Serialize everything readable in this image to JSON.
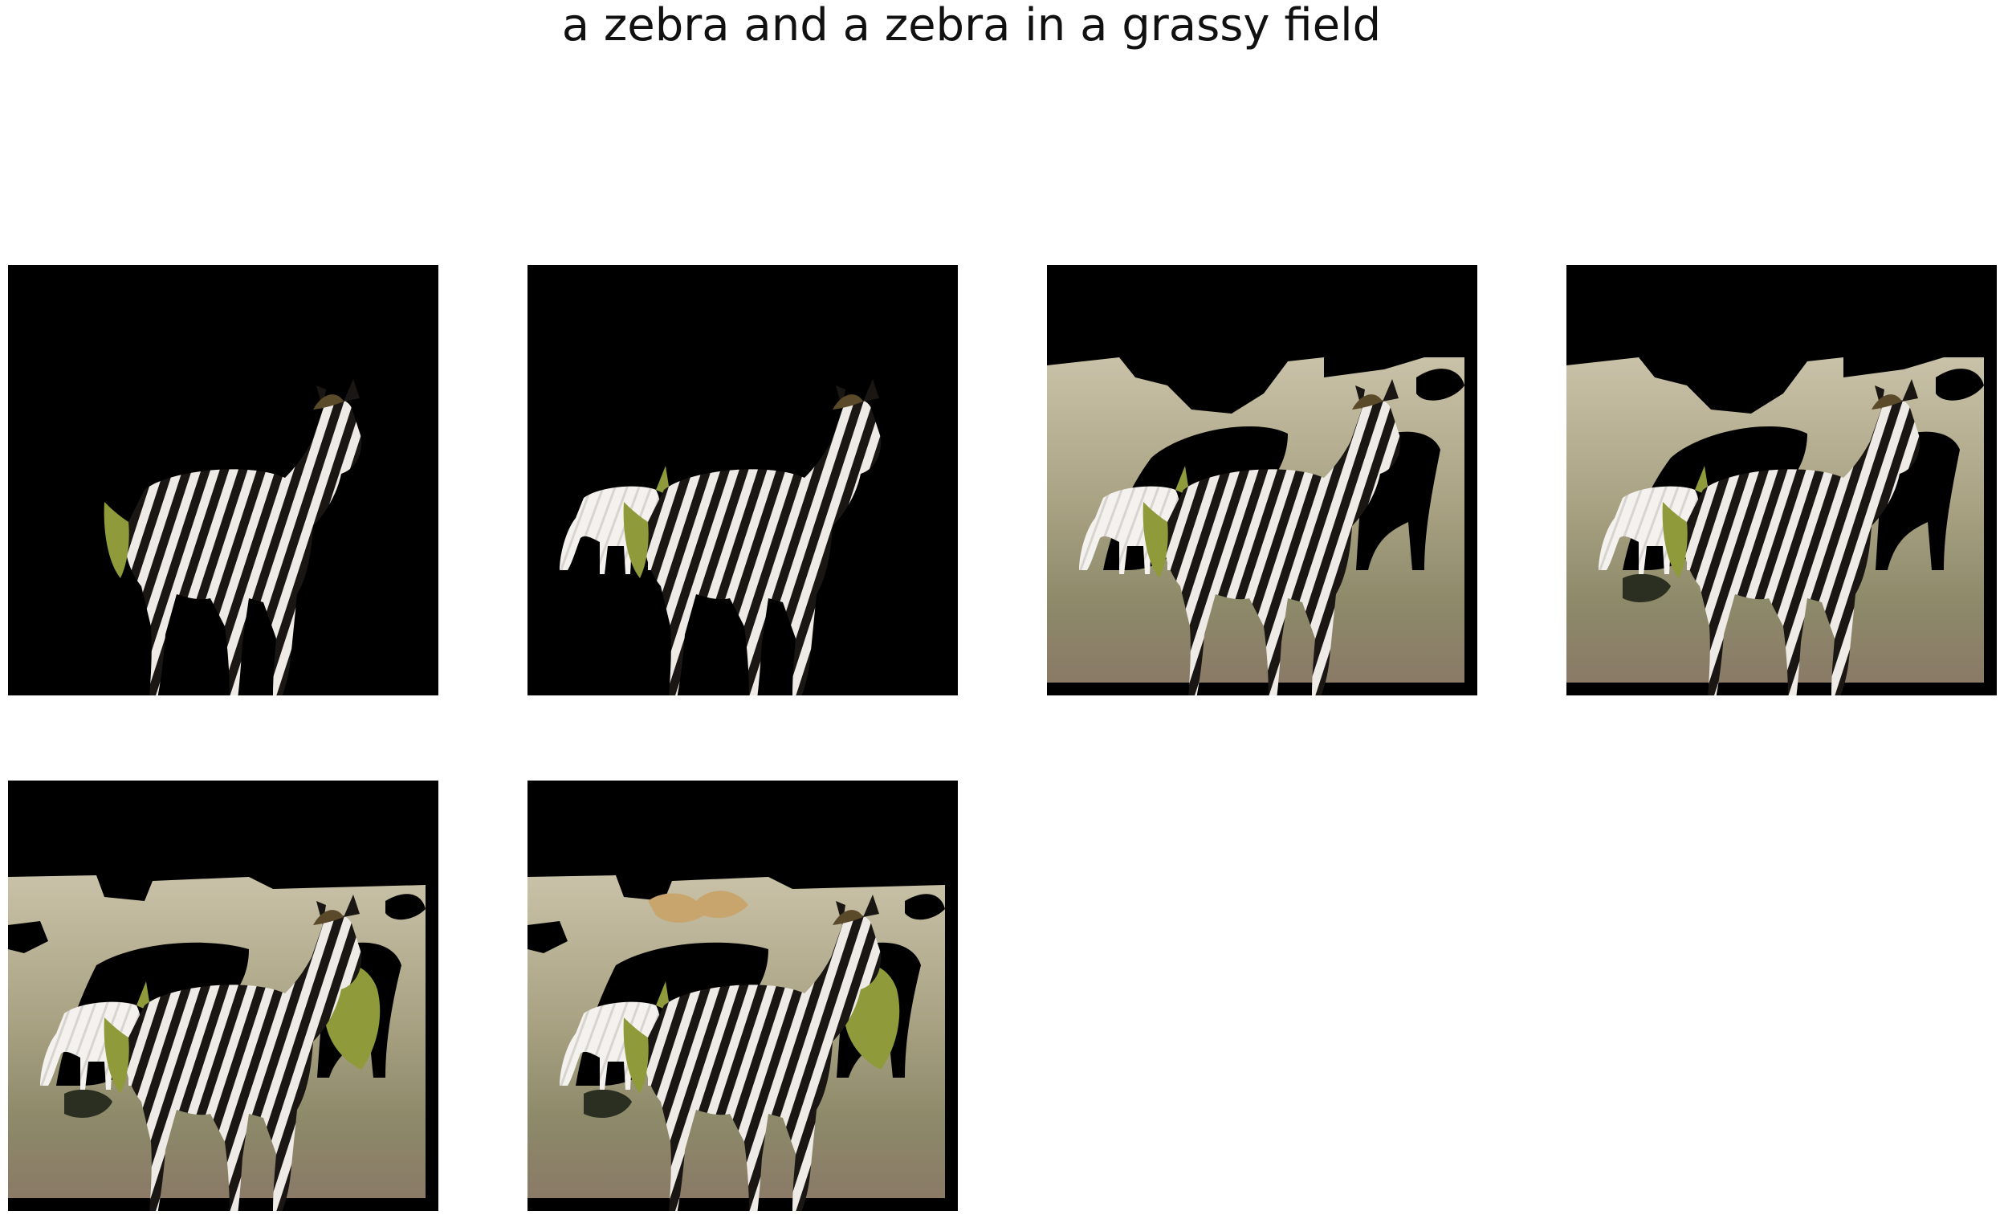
{
  "title": "a zebra and a zebra in a grassy field",
  "panels": [
    {
      "index": 1,
      "layers": [
        "zebra-main",
        "tail-foliage"
      ]
    },
    {
      "index": 2,
      "layers": [
        "zebra-main",
        "zebra-white"
      ]
    },
    {
      "index": 3,
      "layers": [
        "background-field",
        "zebra-main",
        "zebra-white"
      ]
    },
    {
      "index": 4,
      "layers": [
        "background-field",
        "zebra-main",
        "zebra-white",
        "shadow-patch"
      ]
    },
    {
      "index": 5,
      "layers": [
        "background-field",
        "zebra-main",
        "zebra-white",
        "shadow-patch",
        "bush-right"
      ]
    },
    {
      "index": 6,
      "layers": [
        "background-field",
        "zebra-main",
        "zebra-white",
        "shadow-patch",
        "bush-right",
        "butterfly"
      ]
    }
  ],
  "colors": {
    "background": "#000000",
    "grass": "#9a9170",
    "grass_light": "#c9c2a8",
    "dirt": "#8a7a66",
    "zebra_dark": "#1a1614",
    "zebra_light": "#eeeae6",
    "foliage": "#8f9a3a"
  }
}
